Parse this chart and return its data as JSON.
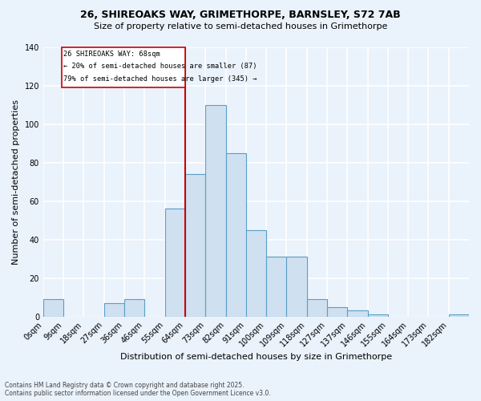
{
  "title1": "26, SHIREOAKS WAY, GRIMETHORPE, BARNSLEY, S72 7AB",
  "title2": "Size of property relative to semi-detached houses in Grimethorpe",
  "xlabel": "Distribution of semi-detached houses by size in Grimethorpe",
  "ylabel": "Number of semi-detached properties",
  "bar_color": "#cfe0f0",
  "bar_edge_color": "#5a9fc8",
  "categories": [
    "0sqm",
    "9sqm",
    "18sqm",
    "27sqm",
    "36sqm",
    "46sqm",
    "55sqm",
    "64sqm",
    "73sqm",
    "82sqm",
    "91sqm",
    "100sqm",
    "109sqm",
    "118sqm",
    "127sqm",
    "137sqm",
    "146sqm",
    "155sqm",
    "164sqm",
    "173sqm",
    "182sqm"
  ],
  "values": [
    9,
    0,
    0,
    7,
    9,
    0,
    56,
    74,
    110,
    85,
    45,
    31,
    31,
    9,
    5,
    3,
    1,
    0,
    0,
    0,
    1
  ],
  "vline_x": 7,
  "annotation_title": "26 SHIREOAKS WAY: 68sqm",
  "annotation_smaller": "← 20% of semi-detached houses are smaller (87)",
  "annotation_larger": "79% of semi-detached houses are larger (345) →",
  "ylim": [
    0,
    140
  ],
  "yticks": [
    0,
    20,
    40,
    60,
    80,
    100,
    120,
    140
  ],
  "footer1": "Contains HM Land Registry data © Crown copyright and database right 2025.",
  "footer2": "Contains public sector information licensed under the Open Government Licence v3.0.",
  "background_color": "#eaf2fb",
  "grid_color": "#ffffff",
  "vline_color": "#cc0000",
  "annotation_box_color": "#ffffff",
  "annotation_box_edge": "#cc0000",
  "title1_fontsize": 9,
  "title2_fontsize": 8,
  "ylabel_fontsize": 8,
  "xlabel_fontsize": 8,
  "tick_fontsize": 7,
  "footer_fontsize": 5.5
}
